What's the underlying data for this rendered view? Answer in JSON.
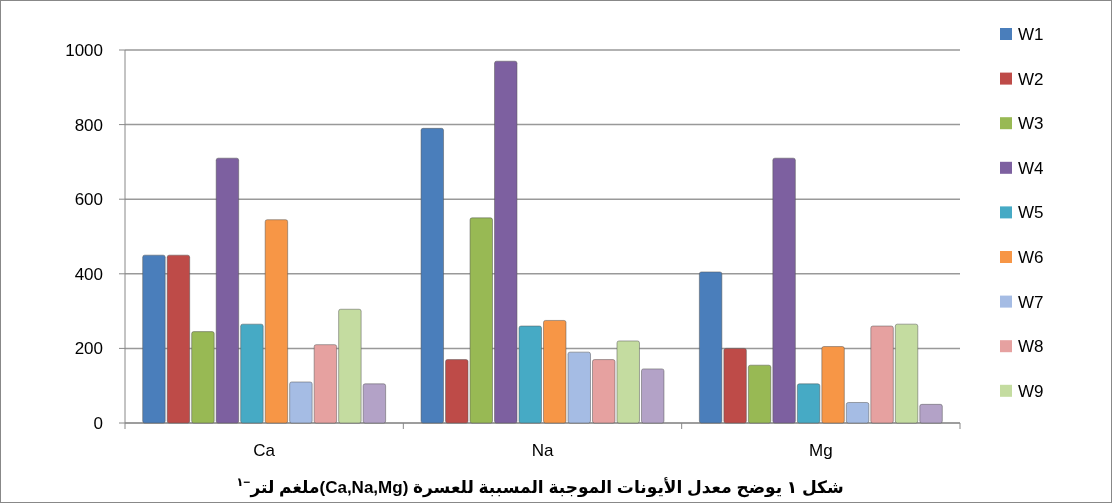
{
  "chart_data": {
    "type": "bar",
    "title": "شكل ١ يوضح معدل الأيونات الموجبة المسببة للعسرة (Ca,Na,Mg)ملغم لتر$^{−١}$",
    "categories": [
      "Ca",
      "Na",
      "Mg"
    ],
    "ylim": [
      0,
      1000
    ],
    "yticks": [
      0,
      200,
      400,
      600,
      800,
      1000
    ],
    "grid": "y",
    "legend": "right",
    "series": [
      {
        "name": "W1",
        "color": "#4a7ebb",
        "values": [
          450,
          790,
          405
        ]
      },
      {
        "name": "W2",
        "color": "#be4b48",
        "values": [
          450,
          170,
          200
        ]
      },
      {
        "name": "W3",
        "color": "#98b954",
        "values": [
          245,
          550,
          155
        ]
      },
      {
        "name": "W4",
        "color": "#7d60a0",
        "values": [
          710,
          970,
          710
        ]
      },
      {
        "name": "W5",
        "color": "#46aac5",
        "values": [
          265,
          260,
          105
        ]
      },
      {
        "name": "W6",
        "color": "#f79646",
        "values": [
          545,
          275,
          205
        ]
      },
      {
        "name": "W7",
        "color": "#a5bce4",
        "values": [
          110,
          190,
          55
        ]
      },
      {
        "name": "W8",
        "color": "#e6a1a0",
        "values": [
          210,
          170,
          260
        ]
      },
      {
        "name": "W9",
        "color": "#c4dca0",
        "values": [
          305,
          220,
          265
        ]
      },
      {
        "color": "#b3a2c7",
        "values": [
          105,
          145,
          50
        ]
      }
    ]
  }
}
